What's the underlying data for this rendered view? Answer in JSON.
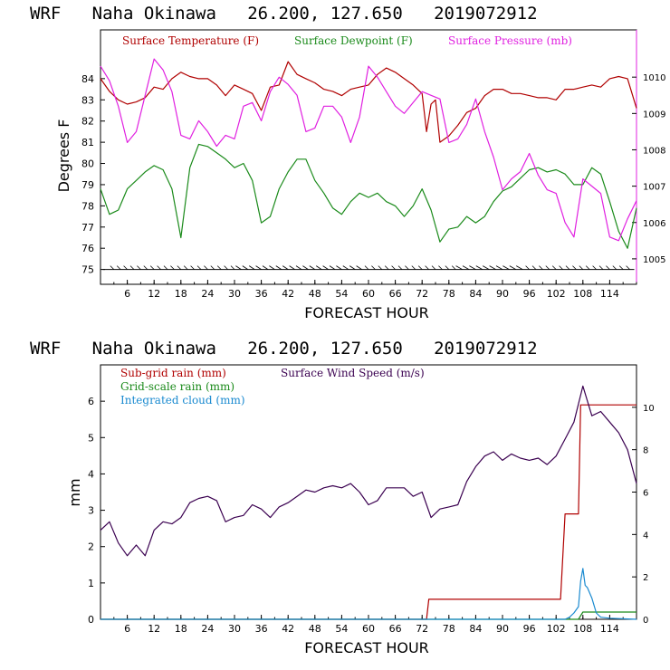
{
  "charts": {
    "top": {
      "title": "WRF   Naha Okinawa   26.200, 127.650   2019072912",
      "xlabel": "FORECAST HOUR",
      "ylabel": "Degrees F",
      "legend": [
        {
          "label": "Surface Temperature (F)",
          "color": "#b00000"
        },
        {
          "label": "Surface Dewpoint (F)",
          "color": "#1a8a1a"
        },
        {
          "label": "Surface Pressure (mb)",
          "color": "#e020e0"
        }
      ],
      "x_ticks": [
        "6",
        "12",
        "18",
        "24",
        "30",
        "36",
        "42",
        "48",
        "54",
        "60",
        "66",
        "72",
        "78",
        "84",
        "90",
        "96",
        "102",
        "108",
        "114"
      ],
      "y_ticks": [
        "75",
        "76",
        "77",
        "78",
        "79",
        "80",
        "81",
        "82",
        "83",
        "84"
      ],
      "y2_ticks": [
        "1005",
        "1006",
        "1007",
        "1008",
        "1009",
        "1010"
      ]
    },
    "bottom": {
      "title": "WRF   Naha Okinawa   26.200, 127.650   2019072912",
      "xlabel": "FORECAST HOUR",
      "ylabel": "mm",
      "legend": [
        {
          "label": "Sub-grid rain (mm)",
          "color": "#b00000"
        },
        {
          "label": "Surface Wind Speed (m/s)",
          "color": "#3a0050"
        },
        {
          "label": "Grid-scale rain (mm)",
          "color": "#1a8a1a"
        },
        {
          "label": "Integrated cloud (mm)",
          "color": "#1a8ad0"
        }
      ],
      "x_ticks": [
        "6",
        "12",
        "18",
        "24",
        "30",
        "36",
        "42",
        "48",
        "54",
        "60",
        "66",
        "72",
        "78",
        "84",
        "90",
        "96",
        "102",
        "108",
        "114"
      ],
      "y_ticks": [
        "0",
        "1",
        "2",
        "3",
        "4",
        "5",
        "6"
      ],
      "y2_ticks": [
        "0",
        "2",
        "4",
        "6",
        "8",
        "10"
      ]
    }
  },
  "chart_data": [
    {
      "type": "line",
      "title": "WRF   Naha Okinawa   26.200, 127.650   2019072912",
      "xlabel": "FORECAST HOUR",
      "ylabel": "Degrees F",
      "xlim": [
        0,
        120
      ],
      "ylim": [
        74.3,
        86.3
      ],
      "y2lim": [
        1004.3,
        1011.3
      ],
      "grid": false,
      "legend_position": "top",
      "series": [
        {
          "name": "Surface Temperature (F)",
          "axis": "left",
          "color": "#b00000",
          "x": [
            0,
            2,
            4,
            6,
            8,
            10,
            12,
            14,
            16,
            18,
            20,
            22,
            24,
            26,
            28,
            30,
            32,
            34,
            36,
            38,
            40,
            42,
            44,
            46,
            48,
            50,
            52,
            54,
            56,
            58,
            60,
            62,
            64,
            66,
            68,
            70,
            72,
            73,
            74,
            75,
            76,
            78,
            80,
            82,
            84,
            86,
            88,
            90,
            92,
            94,
            96,
            98,
            100,
            102,
            104,
            106,
            108,
            110,
            112,
            114,
            116,
            118,
            120
          ],
          "y": [
            84.0,
            83.4,
            83.0,
            82.8,
            82.9,
            83.1,
            83.6,
            83.5,
            84.0,
            84.3,
            84.1,
            84.0,
            84.0,
            83.7,
            83.2,
            83.7,
            83.5,
            83.3,
            82.5,
            83.6,
            83.7,
            84.8,
            84.2,
            84.0,
            83.8,
            83.5,
            83.4,
            83.2,
            83.5,
            83.6,
            83.7,
            84.2,
            84.5,
            84.3,
            84.0,
            83.7,
            83.3,
            81.5,
            82.8,
            83.0,
            81.0,
            81.3,
            81.8,
            82.4,
            82.6,
            83.2,
            83.5,
            83.5,
            83.3,
            83.3,
            83.2,
            83.1,
            83.1,
            83.0,
            83.5,
            83.5,
            83.6,
            83.7,
            83.6,
            84.0,
            84.1,
            84.0,
            82.6
          ]
        },
        {
          "name": "Surface Dewpoint (F)",
          "axis": "left",
          "color": "#1a8a1a",
          "x": [
            0,
            2,
            4,
            6,
            8,
            10,
            12,
            14,
            16,
            18,
            20,
            22,
            24,
            26,
            28,
            30,
            32,
            34,
            36,
            38,
            40,
            42,
            44,
            46,
            48,
            50,
            52,
            54,
            56,
            58,
            60,
            62,
            64,
            66,
            68,
            70,
            72,
            74,
            76,
            78,
            80,
            82,
            84,
            86,
            88,
            90,
            92,
            94,
            96,
            98,
            100,
            102,
            104,
            106,
            108,
            110,
            112,
            114,
            116,
            118,
            120
          ],
          "y": [
            78.8,
            77.6,
            77.8,
            78.8,
            79.2,
            79.6,
            79.9,
            79.7,
            78.8,
            76.5,
            79.8,
            80.9,
            80.8,
            80.5,
            80.2,
            79.8,
            80.0,
            79.2,
            77.2,
            77.5,
            78.8,
            79.6,
            80.2,
            80.2,
            79.2,
            78.6,
            77.9,
            77.6,
            78.2,
            78.6,
            78.4,
            78.6,
            78.2,
            78.0,
            77.5,
            78.0,
            78.8,
            77.8,
            76.3,
            76.9,
            77.0,
            77.5,
            77.2,
            77.5,
            78.2,
            78.7,
            78.9,
            79.3,
            79.7,
            79.8,
            79.6,
            79.7,
            79.5,
            79.0,
            79.0,
            79.8,
            79.5,
            78.2,
            76.8,
            76.0,
            77.9
          ]
        },
        {
          "name": "Surface Pressure (mb)",
          "axis": "right",
          "color": "#e020e0",
          "x": [
            0,
            2,
            4,
            6,
            8,
            10,
            12,
            14,
            16,
            18,
            20,
            22,
            24,
            26,
            28,
            30,
            32,
            34,
            36,
            38,
            40,
            42,
            44,
            46,
            48,
            50,
            52,
            54,
            56,
            58,
            60,
            62,
            64,
            66,
            68,
            70,
            72,
            74,
            76,
            78,
            80,
            82,
            84,
            86,
            88,
            90,
            92,
            94,
            96,
            98,
            100,
            102,
            104,
            106,
            108,
            110,
            112,
            114,
            116,
            118,
            120
          ],
          "y": [
            1010.3,
            1009.9,
            1009.2,
            1008.2,
            1008.5,
            1009.5,
            1010.5,
            1010.2,
            1009.6,
            1008.4,
            1008.3,
            1008.8,
            1008.5,
            1008.1,
            1008.4,
            1008.3,
            1009.2,
            1009.3,
            1008.8,
            1009.6,
            1010.0,
            1009.8,
            1009.5,
            1008.5,
            1008.6,
            1009.2,
            1009.2,
            1008.9,
            1008.2,
            1008.9,
            1010.3,
            1010.0,
            1009.6,
            1009.2,
            1009.0,
            1009.3,
            1009.6,
            1009.5,
            1009.4,
            1008.2,
            1008.3,
            1008.7,
            1009.4,
            1008.5,
            1007.8,
            1006.9,
            1007.2,
            1007.4,
            1007.9,
            1007.3,
            1006.9,
            1006.8,
            1006.0,
            1005.6,
            1007.2,
            1007.0,
            1006.8,
            1005.6,
            1005.5,
            1006.1,
            1006.6
          ]
        }
      ]
    },
    {
      "type": "line",
      "title": "WRF   Naha Okinawa   26.200, 127.650   2019072912",
      "xlabel": "FORECAST HOUR",
      "ylabel": "mm",
      "xlim": [
        0,
        120
      ],
      "ylim": [
        0,
        7
      ],
      "y2lim": [
        0,
        12
      ],
      "grid": false,
      "legend_position": "top-left",
      "series": [
        {
          "name": "Sub-grid rain (mm)",
          "axis": "left",
          "color": "#b00000",
          "x": [
            0,
            73,
            73.5,
            103,
            104,
            107,
            107.5,
            120
          ],
          "y": [
            0,
            0,
            0.55,
            0.55,
            2.9,
            2.9,
            5.9,
            5.9
          ]
        },
        {
          "name": "Surface Wind Speed (m/s)",
          "axis": "right",
          "color": "#3a0050",
          "x": [
            0,
            2,
            4,
            6,
            8,
            10,
            12,
            14,
            16,
            18,
            20,
            22,
            24,
            26,
            28,
            30,
            32,
            34,
            36,
            38,
            40,
            42,
            44,
            46,
            48,
            50,
            52,
            54,
            56,
            58,
            60,
            62,
            64,
            66,
            68,
            70,
            72,
            74,
            76,
            78,
            80,
            82,
            84,
            86,
            88,
            90,
            92,
            94,
            96,
            98,
            100,
            102,
            104,
            106,
            108,
            110,
            112,
            114,
            116,
            118,
            120
          ],
          "y": [
            4.2,
            4.6,
            3.6,
            3.0,
            3.5,
            3.0,
            4.2,
            4.6,
            4.5,
            4.8,
            5.5,
            5.7,
            5.8,
            5.6,
            4.6,
            4.8,
            4.9,
            5.4,
            5.2,
            4.8,
            5.3,
            5.5,
            5.8,
            6.1,
            6.0,
            6.2,
            6.3,
            6.2,
            6.4,
            6.0,
            5.4,
            5.6,
            6.2,
            6.2,
            6.2,
            5.8,
            6.0,
            4.8,
            5.2,
            5.3,
            5.4,
            6.5,
            7.2,
            7.7,
            7.9,
            7.5,
            7.8,
            7.6,
            7.5,
            7.6,
            7.3,
            7.7,
            8.5,
            9.3,
            11.0,
            9.6,
            9.8,
            9.3,
            8.8,
            8.0,
            6.4
          ]
        },
        {
          "name": "Grid-scale rain (mm)",
          "axis": "left",
          "color": "#1a8a1a",
          "x": [
            0,
            107,
            108,
            120
          ],
          "y": [
            0,
            0,
            0.2,
            0.2
          ]
        },
        {
          "name": "Integrated cloud (mm)",
          "axis": "right",
          "color": "#1a8ad0",
          "x": [
            0,
            104,
            105,
            106,
            107,
            107.5,
            108,
            108.5,
            109,
            110,
            111,
            112,
            114,
            120
          ],
          "y": [
            0,
            0,
            0.1,
            0.3,
            0.6,
            1.8,
            2.4,
            1.6,
            1.5,
            1.0,
            0.3,
            0.1,
            0.05,
            0
          ]
        }
      ]
    }
  ]
}
